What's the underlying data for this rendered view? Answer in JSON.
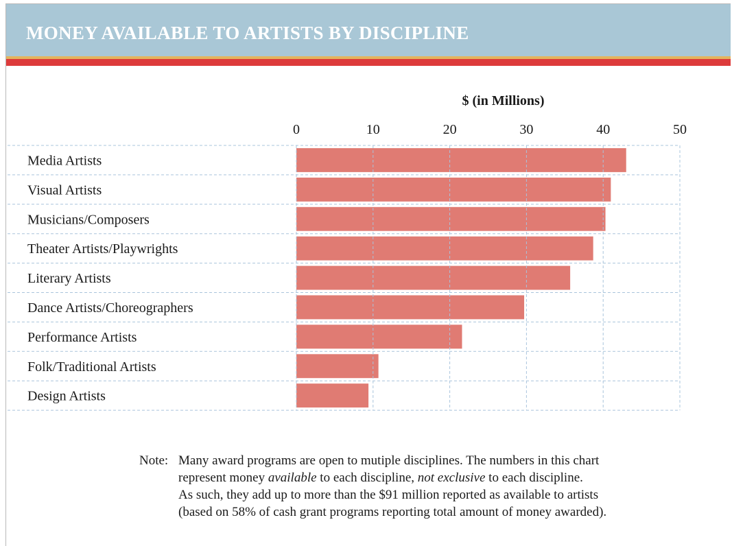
{
  "header": {
    "title": "MONEY AVAILABLE TO ARTISTS BY DISCIPLINE"
  },
  "colors": {
    "header_bg": "#a9c7d6",
    "stripe_gold": "#e3b45e",
    "stripe_red": "#dd3b3b",
    "bar": "#e07b73",
    "grid": "#a9c4dc"
  },
  "chart_data": {
    "type": "bar",
    "orientation": "horizontal",
    "title": "",
    "xlabel": "$ (in Millions)",
    "ylabel": "",
    "xlim": [
      0,
      50
    ],
    "ticks": [
      "0",
      "10",
      "20",
      "30",
      "40",
      "50"
    ],
    "tick_values": [
      0,
      10,
      20,
      30,
      40,
      50
    ],
    "grid": true,
    "categories": [
      "Media Artists",
      "Visual Artists",
      "Musicians/Composers",
      "Theater Artists/Playwrights",
      "Literary Artists",
      "Dance Artists/Choreographers",
      "Performance Artists",
      "Folk/Traditional Artists",
      "Design Artists"
    ],
    "values": [
      43.0,
      41.0,
      40.3,
      38.7,
      35.7,
      29.7,
      21.6,
      10.7,
      9.4
    ]
  },
  "note": {
    "label": "Note:",
    "line1": "Many award programs are open to mutiple disciplines. The numbers in this chart",
    "line2_pre": "represent money ",
    "line2_em1": "available",
    "line2_mid": " to each discipline, ",
    "line2_em2": "not exclusive",
    "line2_post": " to each discipline.",
    "line3": "As such, they add up to more than the $91 million reported as available to artists",
    "line4": "(based on 58% of cash grant programs reporting total amount of money awarded)."
  }
}
